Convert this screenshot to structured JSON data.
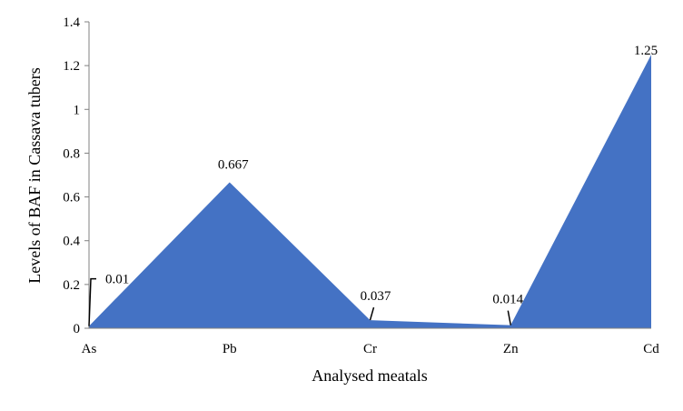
{
  "chart_data": {
    "type": "area",
    "categories": [
      "As",
      "Pb",
      "Cr",
      "Zn",
      "Cd"
    ],
    "values": [
      0.01,
      0.667,
      0.037,
      0.014,
      1.25
    ],
    "data_labels": [
      "0.01",
      "0.667",
      "0.037",
      "0.014",
      "1.25"
    ],
    "xlabel": "Analysed meatals",
    "ylabel": "Levels of BAF in Cassava tubers",
    "ylim": [
      0,
      1.4
    ],
    "yticks": [
      0,
      0.2,
      0.4,
      0.6,
      0.8,
      1,
      1.2,
      1.4
    ],
    "ytick_labels": [
      "0",
      "0.2",
      "0.4",
      "0.6",
      "0.8",
      "1",
      "1.2",
      "1.4"
    ],
    "grid": false,
    "colors": {
      "area": "#4472C4",
      "axis": "#808080",
      "leader": "#000000"
    }
  }
}
